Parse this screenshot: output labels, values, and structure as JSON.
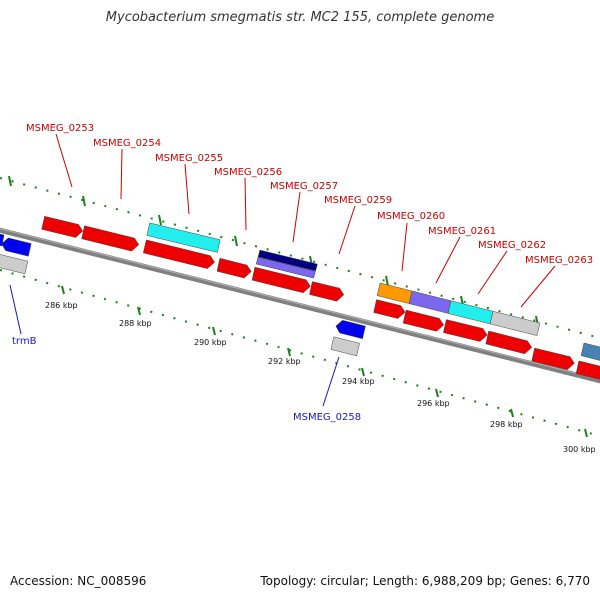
{
  "title": "Mycobacterium smegmatis str. MC2 155, complete genome",
  "accession": "Accession: NC_008596",
  "topology": "Topology: circular; Length: 6,988,209 bp; Genes: 6,770",
  "colors": {
    "backbone": "#808080",
    "tick": "#1e7f1e",
    "gene_red": "#ee0000",
    "gene_blue": "#0000ee",
    "gene_cyan": "#22eeee",
    "gene_navy": "#000080",
    "gene_purple": "#7b68ee",
    "gene_orange": "#ff9900",
    "gene_gray": "#cccccc",
    "gene_steel": "#4682b4",
    "label_red": "#cc0000",
    "label_blue": "#1a1ab5"
  },
  "scale_labels": [
    "286 kbp",
    "288 kbp",
    "290 kbp",
    "292 kbp",
    "294 kbp",
    "296 kbp",
    "298 kbp",
    "300 kbp"
  ],
  "gene_labels_top": [
    "MSMEG_0253",
    "MSMEG_0254",
    "MSMEG_0255",
    "MSMEG_0256",
    "MSMEG_0257",
    "MSMEG_0259",
    "MSMEG_0260",
    "MSMEG_0261",
    "MSMEG_0262",
    "MSMEG_0263"
  ],
  "gene_labels_bottom": [
    "trmB",
    "MSMEG_0258"
  ]
}
